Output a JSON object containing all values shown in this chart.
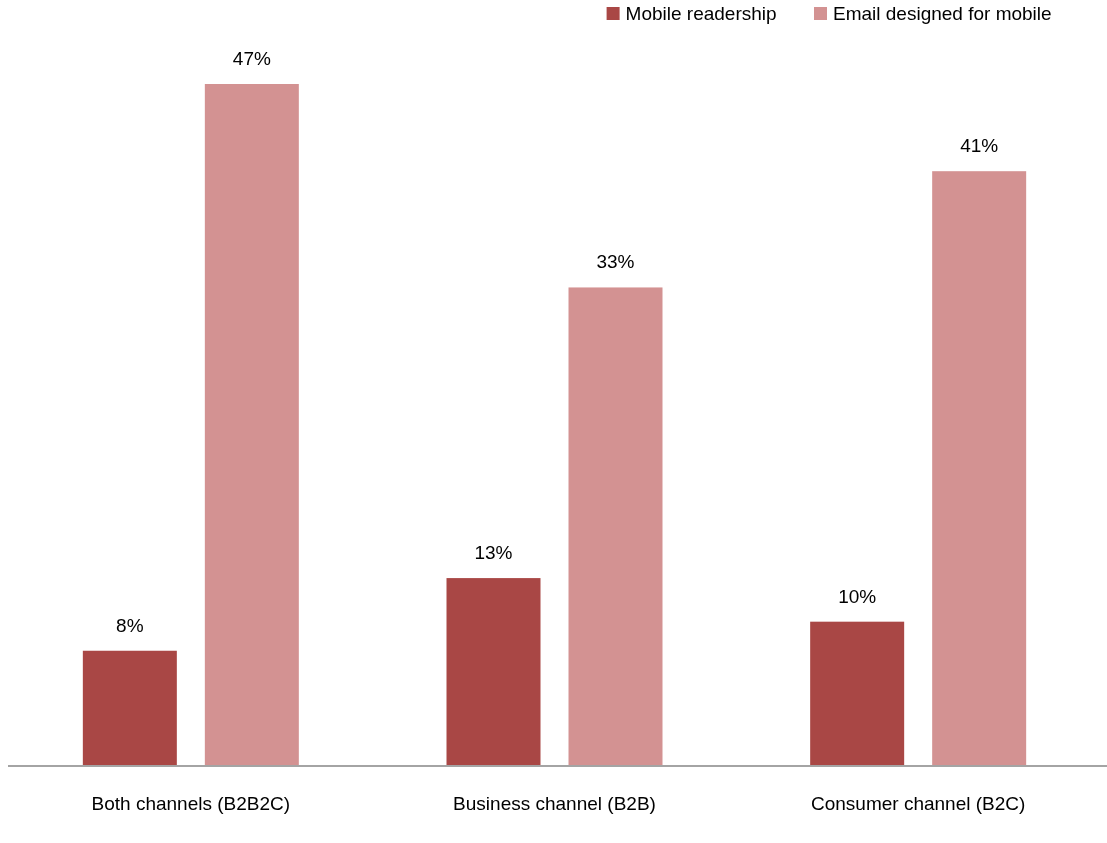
{
  "chart_data": {
    "type": "bar",
    "categories": [
      "Both channels (B2B2C)",
      "Business channel (B2B)",
      "Consumer channel (B2C)"
    ],
    "series": [
      {
        "name": "Mobile readership",
        "color": "#a94745",
        "values": [
          8,
          13,
          10
        ],
        "value_labels": [
          "8%",
          "13%",
          "10%"
        ]
      },
      {
        "name": "Email designed for mobile",
        "color": "#d39292",
        "values": [
          47,
          33,
          41
        ],
        "value_labels": [
          "47%",
          "33%",
          "41%"
        ]
      }
    ],
    "legend": "top right"
  }
}
